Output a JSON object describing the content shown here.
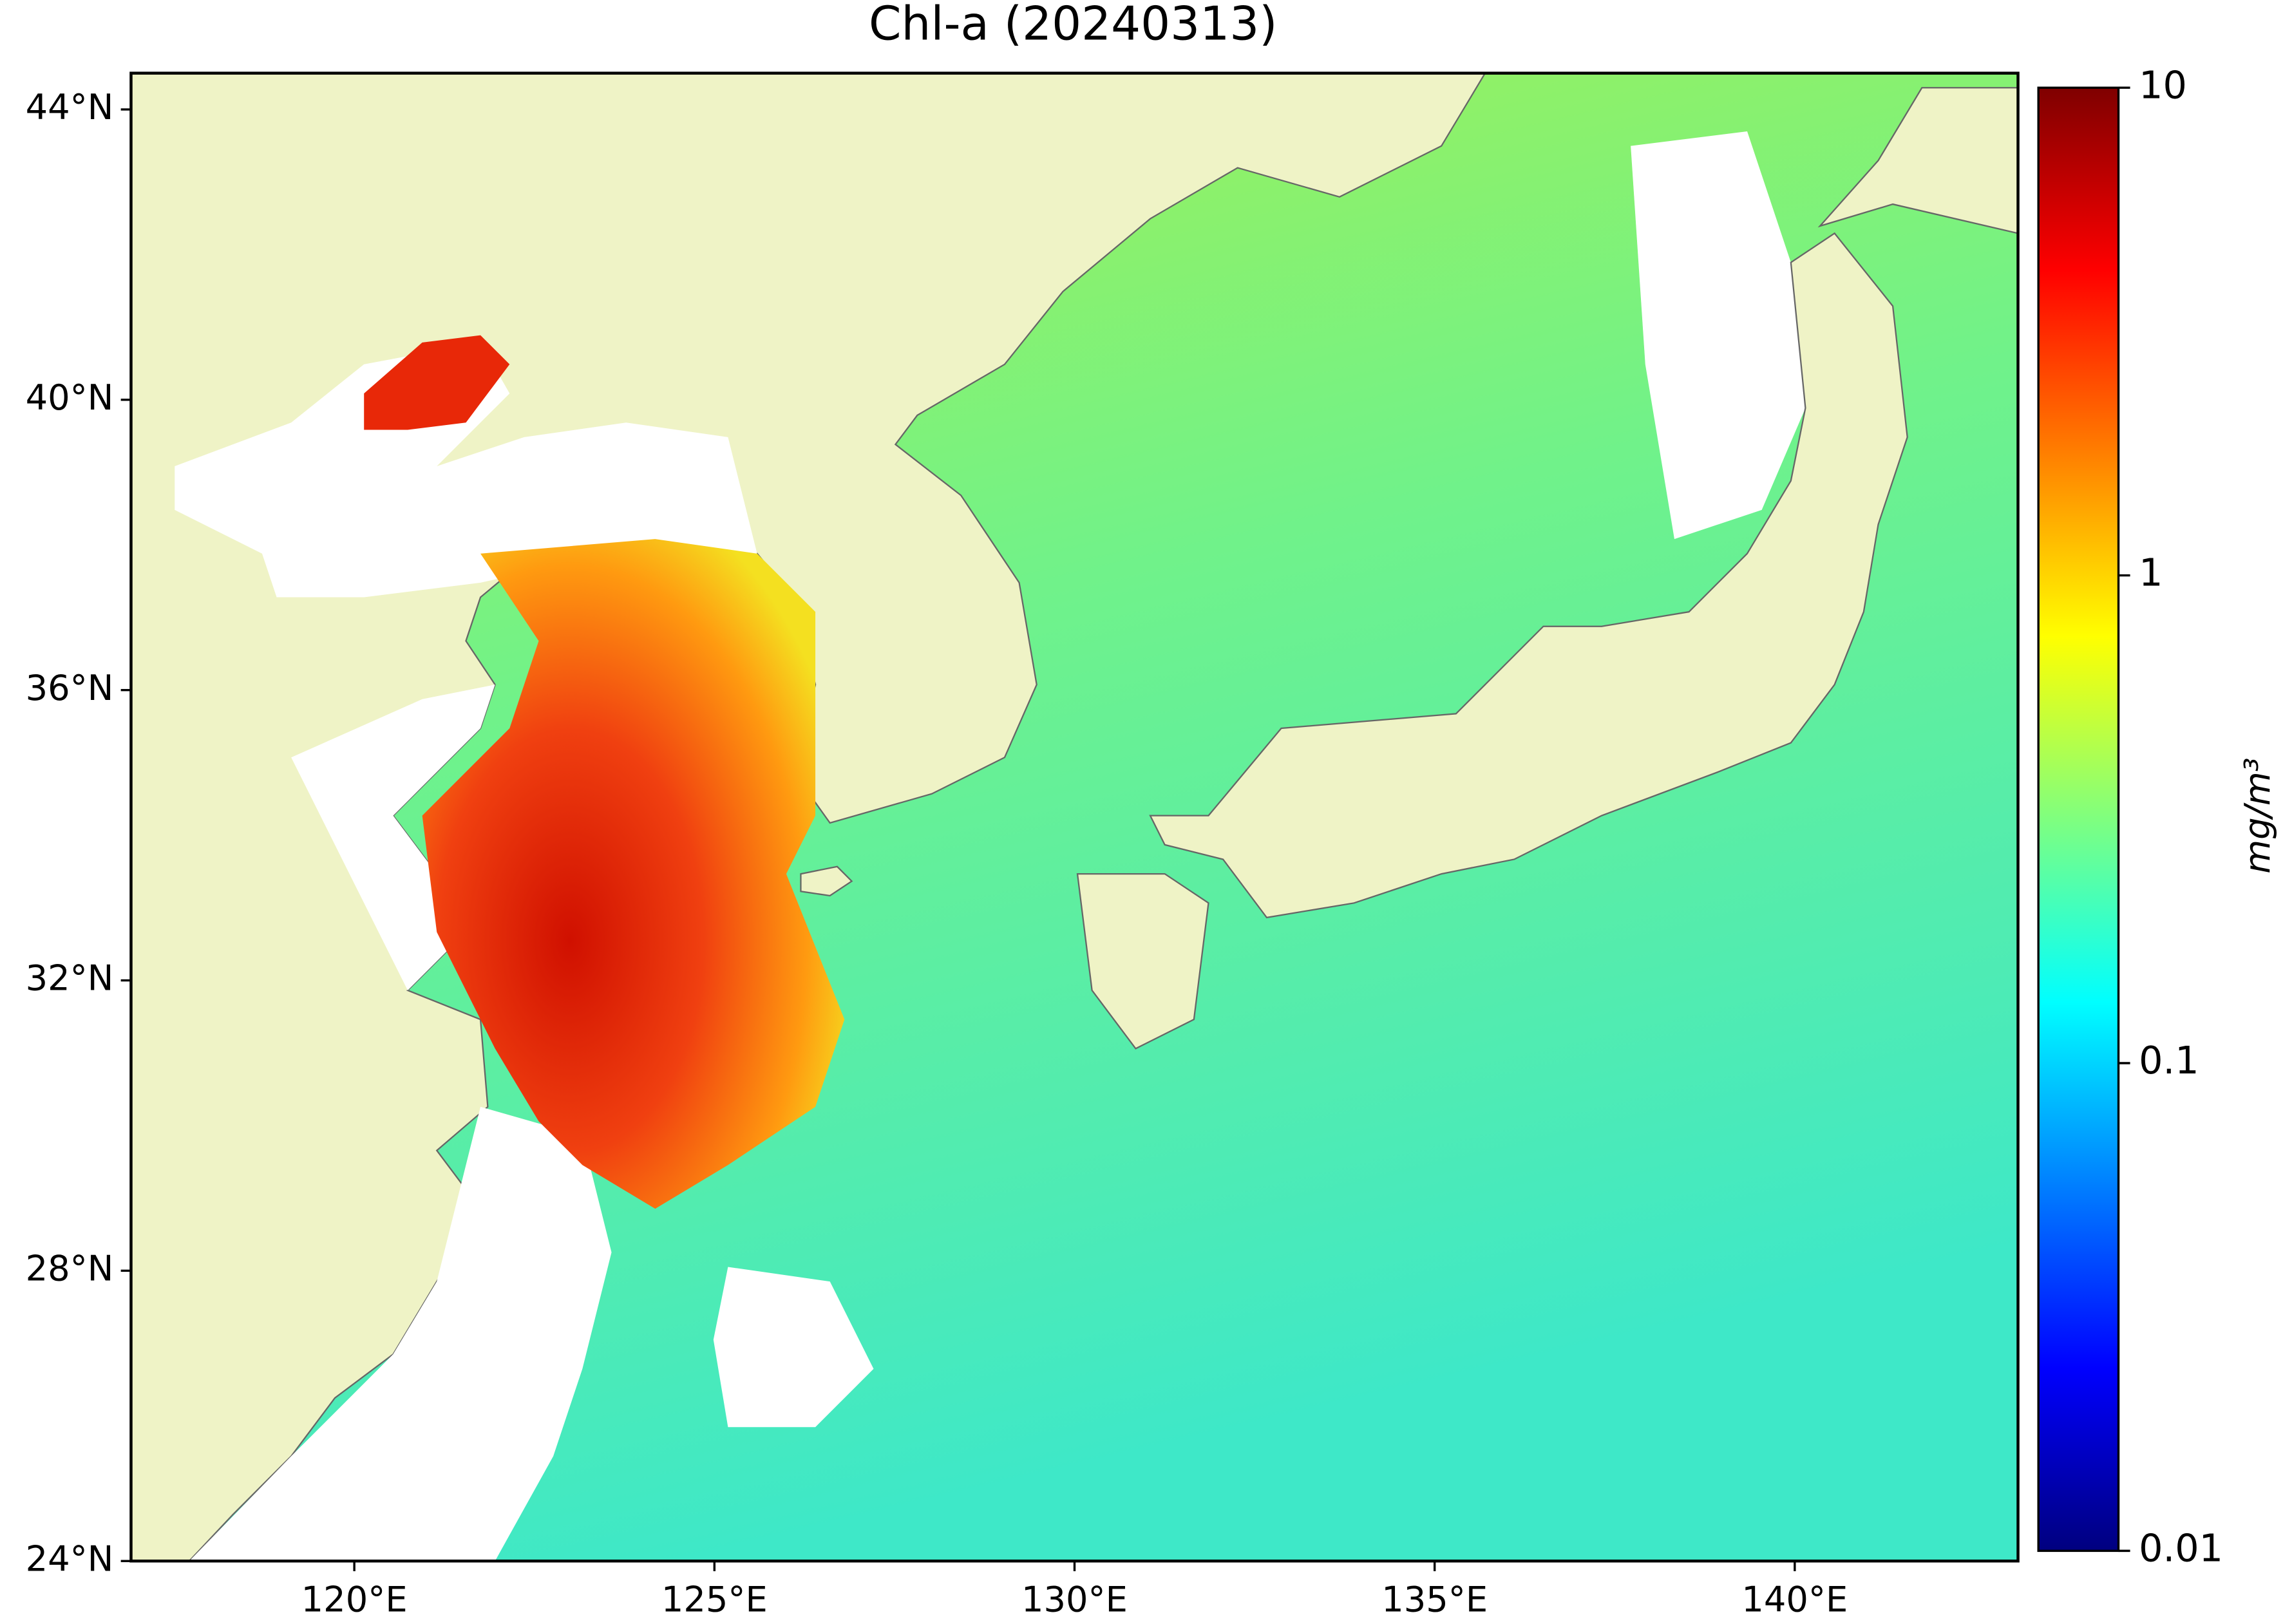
{
  "chart_data": {
    "type": "map",
    "title": "Chl-a (20240313)",
    "xlim": [
      116.9,
      143.1
    ],
    "ylim": [
      24,
      44.5
    ],
    "xticks": [
      {
        "value": 120,
        "label": "120°E"
      },
      {
        "value": 125,
        "label": "125°E"
      },
      {
        "value": 130,
        "label": "130°E"
      },
      {
        "value": 135,
        "label": "135°E"
      },
      {
        "value": 140,
        "label": "140°E"
      }
    ],
    "yticks": [
      {
        "value": 24,
        "label": "24°N"
      },
      {
        "value": 28,
        "label": "28°N"
      },
      {
        "value": 32,
        "label": "32°N"
      },
      {
        "value": 36,
        "label": "36°N"
      },
      {
        "value": 40,
        "label": "40°N"
      },
      {
        "value": 44,
        "label": "44°N"
      }
    ],
    "colorbar": {
      "label": "mg/m³",
      "scale": "log",
      "lim": [
        0.01,
        10
      ],
      "ticks": [
        0.01,
        0.1,
        1,
        10
      ],
      "colormap": "jet"
    }
  }
}
